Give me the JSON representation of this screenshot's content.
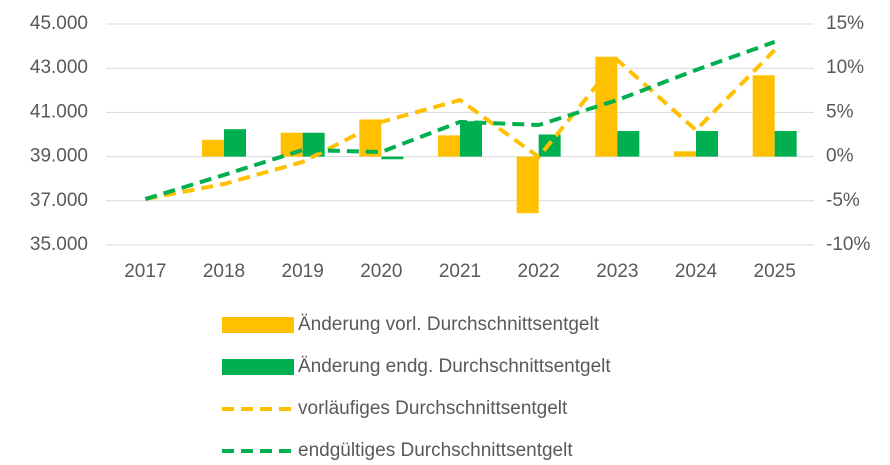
{
  "chart_data": {
    "type": "combo",
    "categories": [
      "2017",
      "2018",
      "2019",
      "2020",
      "2021",
      "2022",
      "2023",
      "2024",
      "2025"
    ],
    "series": [
      {
        "name": "Änderung vorl. Durchschnittsentgelt",
        "type": "bar",
        "axis": "y2",
        "color": "#FFC000",
        "values": [
          null,
          1.9,
          2.7,
          4.2,
          2.4,
          -6.4,
          11.3,
          0.6,
          9.2
        ]
      },
      {
        "name": "Änderung endg. Durchschnittsentgelt",
        "type": "bar",
        "axis": "y2",
        "color": "#00B050",
        "values": [
          null,
          3.1,
          2.7,
          -0.3,
          4.0,
          2.5,
          2.9,
          2.9,
          2.9
        ]
      },
      {
        "name": "vorläufiges Durchschnittsentgelt",
        "type": "line",
        "line_style": "dashed",
        "color": "#FFC000",
        "values": [
          37080,
          37760,
          38760,
          40570,
          41560,
          38980,
          43370,
          40200,
          43820
        ]
      },
      {
        "name": "endgültiges Durchschnittsentgelt",
        "type": "line",
        "line_style": "dashed",
        "color": "#00B050",
        "values": [
          37080,
          38170,
          39300,
          39210,
          40570,
          40430,
          41560,
          42920,
          44190
        ]
      }
    ],
    "ylim": [
      35000,
      45000
    ],
    "yticks": [
      {
        "value": 35000,
        "label": "35.000"
      },
      {
        "value": 37000,
        "label": "37.000"
      },
      {
        "value": 39000,
        "label": "39.000"
      },
      {
        "value": 41000,
        "label": "41.000"
      },
      {
        "value": 43000,
        "label": "43.000"
      },
      {
        "value": 45000,
        "label": "45.000"
      }
    ],
    "y2lim": [
      -10,
      15
    ],
    "y2ticks": [
      {
        "value": -10,
        "label": "-10%"
      },
      {
        "value": -5,
        "label": "-5%"
      },
      {
        "value": 0,
        "label": "0%"
      },
      {
        "value": 5,
        "label": "5%"
      },
      {
        "value": 10,
        "label": "10%"
      },
      {
        "value": 15,
        "label": "15%"
      }
    ],
    "grid": true,
    "legend": "bottom"
  }
}
